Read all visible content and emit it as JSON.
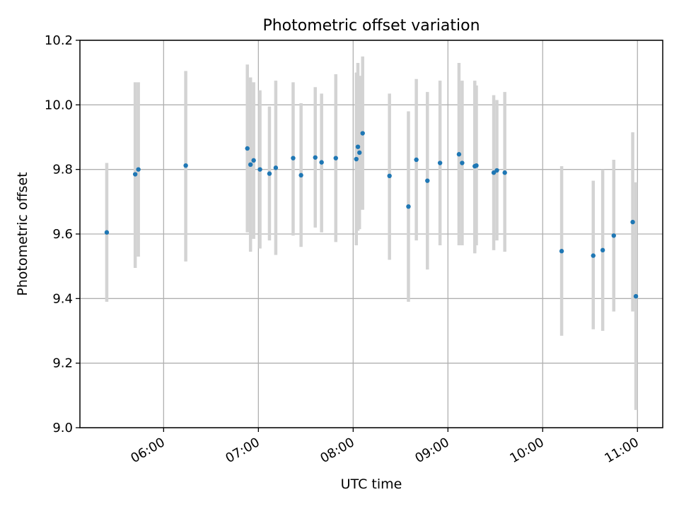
{
  "chart_data": {
    "type": "scatter",
    "title": "Photometric offset variation",
    "xlabel": "UTC time",
    "ylabel": "Photometric offset",
    "xlim": [
      "05:07",
      "11:16"
    ],
    "ylim": [
      9.0,
      10.2
    ],
    "grid": true,
    "x_ticks": [
      "06:00",
      "07:00",
      "08:00",
      "09:00",
      "10:00",
      "11:00"
    ],
    "y_ticks": [
      "9.0",
      "9.2",
      "9.4",
      "9.6",
      "9.8",
      "10.0",
      "10.2"
    ],
    "colors": {
      "point": "#1f77b4",
      "errorbar": "#d3d3d3"
    },
    "points": [
      {
        "x": "05:24",
        "y": 9.605,
        "lo": 9.39,
        "hi": 9.82
      },
      {
        "x": "05:42",
        "y": 9.785,
        "lo": 9.495,
        "hi": 10.07
      },
      {
        "x": "05:44",
        "y": 9.8,
        "lo": 9.53,
        "hi": 10.07
      },
      {
        "x": "06:14",
        "y": 9.812,
        "lo": 9.515,
        "hi": 10.105
      },
      {
        "x": "06:53",
        "y": 9.865,
        "lo": 9.605,
        "hi": 10.125
      },
      {
        "x": "06:55",
        "y": 9.815,
        "lo": 9.545,
        "hi": 10.085
      },
      {
        "x": "06:57",
        "y": 9.828,
        "lo": 9.585,
        "hi": 10.07
      },
      {
        "x": "07:01",
        "y": 9.8,
        "lo": 9.555,
        "hi": 10.045
      },
      {
        "x": "07:07",
        "y": 9.787,
        "lo": 9.58,
        "hi": 9.995
      },
      {
        "x": "07:11",
        "y": 9.805,
        "lo": 9.535,
        "hi": 10.075
      },
      {
        "x": "07:22",
        "y": 9.835,
        "lo": 9.595,
        "hi": 10.07
      },
      {
        "x": "07:27",
        "y": 9.782,
        "lo": 9.56,
        "hi": 10.005
      },
      {
        "x": "07:36",
        "y": 9.837,
        "lo": 9.62,
        "hi": 10.055
      },
      {
        "x": "07:40",
        "y": 9.822,
        "lo": 9.605,
        "hi": 10.035
      },
      {
        "x": "07:49",
        "y": 9.835,
        "lo": 9.575,
        "hi": 10.095
      },
      {
        "x": "08:02",
        "y": 9.832,
        "lo": 9.565,
        "hi": 10.1
      },
      {
        "x": "08:03",
        "y": 9.87,
        "lo": 9.61,
        "hi": 10.13
      },
      {
        "x": "08:04",
        "y": 9.852,
        "lo": 9.615,
        "hi": 10.09
      },
      {
        "x": "08:06",
        "y": 9.912,
        "lo": 9.675,
        "hi": 10.15
      },
      {
        "x": "08:23",
        "y": 9.78,
        "lo": 9.52,
        "hi": 10.035
      },
      {
        "x": "08:35",
        "y": 9.685,
        "lo": 9.39,
        "hi": 9.98
      },
      {
        "x": "08:40",
        "y": 9.83,
        "lo": 9.58,
        "hi": 10.08
      },
      {
        "x": "08:47",
        "y": 9.765,
        "lo": 9.49,
        "hi": 10.04
      },
      {
        "x": "08:55",
        "y": 9.82,
        "lo": 9.565,
        "hi": 10.075
      },
      {
        "x": "09:07",
        "y": 9.847,
        "lo": 9.565,
        "hi": 10.13
      },
      {
        "x": "09:09",
        "y": 9.82,
        "lo": 9.565,
        "hi": 10.075
      },
      {
        "x": "09:17",
        "y": 9.81,
        "lo": 9.54,
        "hi": 10.075
      },
      {
        "x": "09:18",
        "y": 9.812,
        "lo": 9.565,
        "hi": 10.06
      },
      {
        "x": "09:29",
        "y": 9.79,
        "lo": 9.55,
        "hi": 10.03
      },
      {
        "x": "09:31",
        "y": 9.797,
        "lo": 9.58,
        "hi": 10.015
      },
      {
        "x": "09:36",
        "y": 9.79,
        "lo": 9.545,
        "hi": 10.04
      },
      {
        "x": "10:12",
        "y": 9.547,
        "lo": 9.285,
        "hi": 9.81
      },
      {
        "x": "10:32",
        "y": 9.533,
        "lo": 9.305,
        "hi": 9.765
      },
      {
        "x": "10:38",
        "y": 9.55,
        "lo": 9.3,
        "hi": 9.8
      },
      {
        "x": "10:45",
        "y": 9.595,
        "lo": 9.36,
        "hi": 9.83
      },
      {
        "x": "10:57",
        "y": 9.637,
        "lo": 9.36,
        "hi": 9.915
      },
      {
        "x": "10:59",
        "y": 9.407,
        "lo": 9.055,
        "hi": 9.76
      }
    ]
  }
}
